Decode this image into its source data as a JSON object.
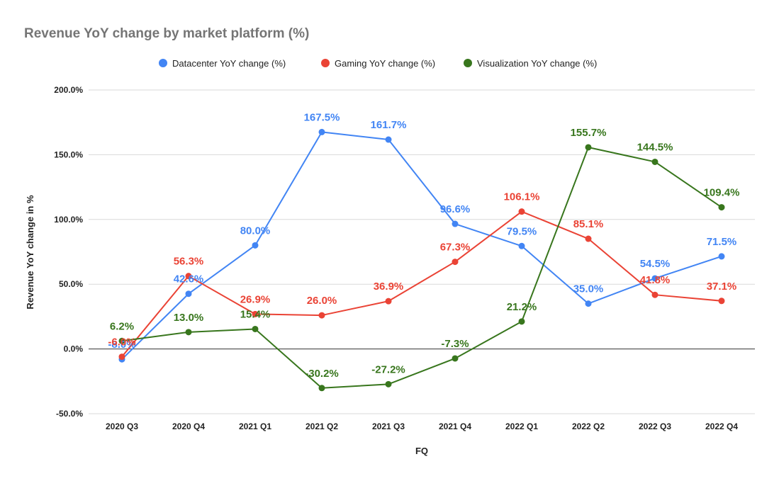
{
  "chart_data": {
    "type": "line",
    "title": "Revenue YoY change by market platform (%)",
    "xlabel": "FQ",
    "ylabel": "Revenue YoY change in %",
    "categories": [
      "2020 Q3",
      "2020 Q4",
      "2021 Q1",
      "2021 Q2",
      "2021 Q3",
      "2021 Q4",
      "2022 Q1",
      "2022 Q2",
      "2022 Q3",
      "2022 Q4"
    ],
    "yticks": [
      -50,
      0,
      50,
      100,
      150,
      200
    ],
    "ytick_labels": [
      "-50.0%",
      "0.0%",
      "50.0%",
      "100.0%",
      "150.0%",
      "200.0%"
    ],
    "ylim": [
      -50,
      200
    ],
    "grid": true,
    "legend_position": "top-center",
    "series": [
      {
        "name": "Datacenter YoY change (%)",
        "color": "#4285f4",
        "values": [
          -8.0,
          42.6,
          80.0,
          167.5,
          161.7,
          96.6,
          79.5,
          35.0,
          54.5,
          71.5
        ],
        "labels": [
          "-8.0%",
          "42.6%",
          "80.0%",
          "167.5%",
          "161.7%",
          "96.6%",
          "79.5%",
          "35.0%",
          "54.5%",
          "71.5%"
        ]
      },
      {
        "name": "Gaming YoY change (%)",
        "color": "#ea4335",
        "values": [
          -6.0,
          56.3,
          26.9,
          26.0,
          36.9,
          67.3,
          106.1,
          85.1,
          41.8,
          37.1
        ],
        "labels": [
          "-6.0%",
          "56.3%",
          "26.9%",
          "26.0%",
          "36.9%",
          "67.3%",
          "106.1%",
          "85.1%",
          "41.8%",
          "37.1%"
        ]
      },
      {
        "name": "Visualization YoY change (%)",
        "color": "#38761d",
        "values": [
          6.2,
          13.0,
          15.4,
          -30.2,
          -27.2,
          -7.3,
          21.2,
          155.7,
          144.5,
          109.4
        ],
        "labels": [
          "6.2%",
          "13.0%",
          "15.4%",
          "-30.2%",
          "-27.2%",
          "-7.3%",
          "21.2%",
          "155.7%",
          "144.5%",
          "109.4%"
        ]
      }
    ]
  }
}
